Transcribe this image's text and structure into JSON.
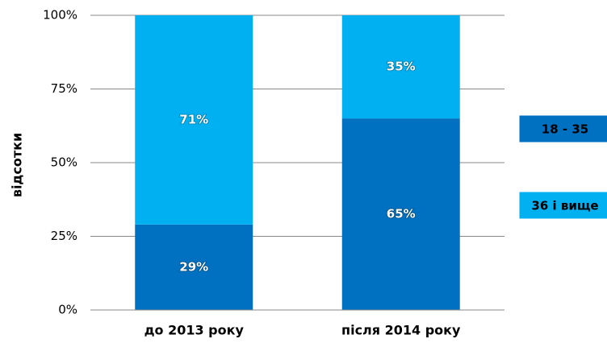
{
  "chart_data": {
    "type": "stacked_bar",
    "y_label": "відсотки",
    "categories": [
      "до 2013 року",
      "після 2014 року"
    ],
    "series": [
      {
        "name": "18 - 35",
        "color": "#0070c0",
        "values": [
          29,
          65
        ],
        "value_labels": [
          "29%",
          "65%"
        ]
      },
      {
        "name": "36 і вище",
        "color": "#00b0f0",
        "values": [
          71,
          35
        ],
        "value_labels": [
          "71%",
          "35%"
        ]
      }
    ],
    "ylim": [
      0,
      100
    ],
    "yticks": [
      {
        "value": 0,
        "label": "0%"
      },
      {
        "value": 25,
        "label": "25%"
      },
      {
        "value": 50,
        "label": "50%"
      },
      {
        "value": 75,
        "label": "75%"
      },
      {
        "value": 100,
        "label": "100%"
      }
    ],
    "grid": true,
    "legend": "right"
  }
}
